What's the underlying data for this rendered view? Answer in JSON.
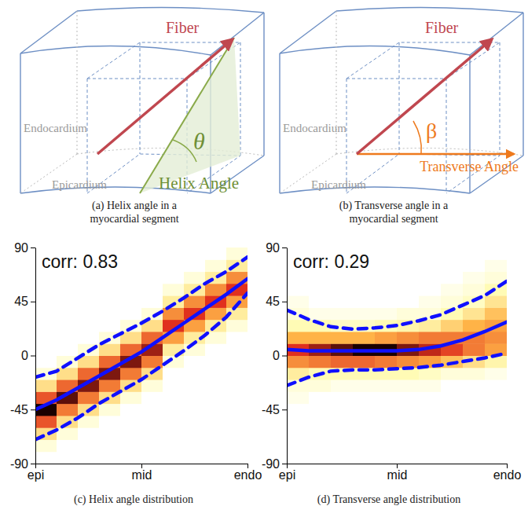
{
  "diagrams": [
    {
      "fiber": "Fiber",
      "inner_surface": "Endocardium",
      "outer_surface": "Epicardium",
      "angle_name": "Helix Angle",
      "angle_symbol": "θ",
      "kind": "helix",
      "caption": [
        "(a) Helix angle in a",
        "myocardial segment"
      ]
    },
    {
      "fiber": "Fiber",
      "inner_surface": "Endocardium",
      "outer_surface": "Epicardium",
      "angle_name": "Transverse Angle",
      "angle_symbol": "β",
      "kind": "transverse",
      "caption": [
        "(b) Transverse angle in a",
        "myocardial segment"
      ]
    }
  ],
  "chart_data": [
    {
      "type": "heatmap",
      "annotation": "corr: 0.83",
      "caption": "(c) Helix angle distribution",
      "xlim": [
        0,
        1
      ],
      "xticks": [
        {
          "value": 0,
          "label": "epi"
        },
        {
          "value": 0.5,
          "label": "mid"
        },
        {
          "value": 1,
          "label": "endo"
        }
      ],
      "ylim": [
        -90,
        90
      ],
      "yticks": [
        -90,
        -45,
        0,
        45,
        90
      ],
      "xbins": [
        0,
        0.1,
        0.2,
        0.3,
        0.4,
        0.5,
        0.6,
        0.7,
        0.8,
        0.9,
        1
      ],
      "ybins": [
        -90,
        -80,
        -70,
        -60,
        -50,
        -40,
        -30,
        -20,
        -10,
        0,
        10,
        20,
        30,
        40,
        50,
        60,
        70,
        80,
        90
      ],
      "zlim": [
        0,
        1
      ],
      "cells": [
        [
          0,
          0.05,
          0.2,
          0.6,
          1.0,
          0.6,
          0.2,
          0.05,
          0,
          0,
          0,
          0,
          0,
          0,
          0,
          0,
          0,
          0
        ],
        [
          0,
          0,
          0.05,
          0.2,
          0.5,
          0.9,
          0.55,
          0.2,
          0.05,
          0,
          0,
          0,
          0,
          0,
          0,
          0,
          0,
          0
        ],
        [
          0,
          0,
          0,
          0.05,
          0.2,
          0.5,
          0.85,
          0.55,
          0.2,
          0.05,
          0,
          0,
          0,
          0,
          0,
          0,
          0,
          0
        ],
        [
          0,
          0,
          0,
          0,
          0.05,
          0.2,
          0.5,
          0.85,
          0.55,
          0.2,
          0.05,
          0,
          0,
          0,
          0,
          0,
          0,
          0
        ],
        [
          0,
          0,
          0,
          0,
          0,
          0.05,
          0.2,
          0.5,
          0.85,
          0.55,
          0.2,
          0.05,
          0,
          0,
          0,
          0,
          0,
          0
        ],
        [
          0,
          0,
          0,
          0,
          0,
          0,
          0.05,
          0.2,
          0.5,
          0.8,
          0.55,
          0.2,
          0.05,
          0,
          0,
          0,
          0,
          0
        ],
        [
          0,
          0,
          0,
          0,
          0,
          0,
          0,
          0,
          0.05,
          0.15,
          0.4,
          0.7,
          0.45,
          0.15,
          0.05,
          0,
          0,
          0
        ],
        [
          0,
          0,
          0,
          0,
          0,
          0,
          0,
          0,
          0,
          0.05,
          0.15,
          0.4,
          0.7,
          0.45,
          0.15,
          0.05,
          0,
          0
        ],
        [
          0,
          0,
          0,
          0,
          0,
          0,
          0,
          0,
          0,
          0,
          0.05,
          0.15,
          0.4,
          0.7,
          0.45,
          0.15,
          0.05,
          0
        ],
        [
          0,
          0,
          0,
          0,
          0,
          0,
          0,
          0,
          0,
          0,
          0,
          0.05,
          0.15,
          0.4,
          0.7,
          0.45,
          0.15,
          0.05
        ]
      ],
      "x": [
        0,
        0.1,
        0.2,
        0.3,
        0.4,
        0.5,
        0.6,
        0.7,
        0.8,
        0.9,
        1
      ],
      "series": [
        {
          "values": [
            -45,
            -37,
            -27,
            -17,
            -7,
            3,
            15,
            27,
            39,
            51,
            64
          ],
          "color": "#1010ff",
          "line_style": "solid"
        },
        {
          "values": [
            -18,
            -13,
            -2,
            9,
            18,
            27,
            37,
            48,
            60,
            70,
            82
          ],
          "color": "#1010ff",
          "line_style": "dashed"
        },
        {
          "values": [
            -70,
            -62,
            -52,
            -40,
            -30,
            -20,
            -8,
            4,
            17,
            32,
            52
          ],
          "color": "#1010ff",
          "line_style": "dashed"
        }
      ]
    },
    {
      "type": "heatmap",
      "annotation": "corr: 0.29",
      "caption": "(d) Transverse angle distribution",
      "xlim": [
        0,
        1
      ],
      "xticks": [
        {
          "value": 0,
          "label": "epi"
        },
        {
          "value": 0.5,
          "label": "mid"
        },
        {
          "value": 1,
          "label": "endo"
        }
      ],
      "ylim": [
        -90,
        90
      ],
      "yticks": [
        -90,
        -45,
        0,
        45,
        90
      ],
      "xbins": [
        0,
        0.1,
        0.2,
        0.3,
        0.4,
        0.5,
        0.6,
        0.7,
        0.8,
        0.9,
        1
      ],
      "ybins": [
        -90,
        -80,
        -70,
        -60,
        -50,
        -40,
        -30,
        -20,
        -10,
        0,
        10,
        20,
        30,
        40,
        50,
        60,
        70,
        80,
        90
      ],
      "zlim": [
        0,
        1
      ],
      "cells": [
        [
          0,
          0,
          0,
          0,
          0,
          0.03,
          0.05,
          0.15,
          0.45,
          0.7,
          0.35,
          0.1,
          0.05,
          0.03,
          0,
          0,
          0,
          0
        ],
        [
          0,
          0,
          0,
          0,
          0,
          0,
          0.05,
          0.1,
          0.5,
          0.8,
          0.35,
          0.1,
          0.03,
          0,
          0,
          0,
          0,
          0
        ],
        [
          0,
          0,
          0,
          0,
          0,
          0,
          0.03,
          0.1,
          0.55,
          0.9,
          0.35,
          0.08,
          0.03,
          0,
          0,
          0,
          0,
          0
        ],
        [
          0,
          0,
          0,
          0,
          0,
          0,
          0.03,
          0.1,
          0.55,
          1.0,
          0.35,
          0.08,
          0.03,
          0,
          0,
          0,
          0,
          0
        ],
        [
          0,
          0,
          0,
          0,
          0,
          0,
          0.03,
          0.1,
          0.5,
          1.0,
          0.4,
          0.1,
          0.03,
          0,
          0,
          0,
          0,
          0
        ],
        [
          0,
          0,
          0,
          0,
          0,
          0,
          0.03,
          0.1,
          0.45,
          0.85,
          0.45,
          0.12,
          0.05,
          0,
          0,
          0,
          0,
          0
        ],
        [
          0,
          0,
          0,
          0,
          0,
          0,
          0.03,
          0.08,
          0.4,
          0.75,
          0.5,
          0.15,
          0.05,
          0.03,
          0,
          0,
          0,
          0
        ],
        [
          0,
          0,
          0,
          0,
          0,
          0,
          0,
          0.05,
          0.3,
          0.65,
          0.5,
          0.25,
          0.1,
          0.05,
          0.03,
          0,
          0,
          0
        ],
        [
          0,
          0,
          0,
          0,
          0,
          0,
          0,
          0.05,
          0.2,
          0.5,
          0.5,
          0.35,
          0.18,
          0.08,
          0.05,
          0.03,
          0,
          0
        ],
        [
          0,
          0,
          0,
          0,
          0,
          0,
          0,
          0.03,
          0.12,
          0.4,
          0.45,
          0.4,
          0.3,
          0.18,
          0.1,
          0.05,
          0.03,
          0
        ]
      ],
      "x": [
        0,
        0.1,
        0.2,
        0.3,
        0.4,
        0.5,
        0.6,
        0.7,
        0.8,
        0.9,
        1
      ],
      "series": [
        {
          "values": [
            5,
            4,
            4,
            4,
            4,
            4,
            5,
            8,
            13,
            20,
            28
          ],
          "color": "#1010ff",
          "line_style": "solid"
        },
        {
          "values": [
            38,
            30,
            24,
            22,
            23,
            25,
            29,
            34,
            42,
            50,
            62
          ],
          "color": "#1010ff",
          "line_style": "dashed"
        },
        {
          "values": [
            -25,
            -18,
            -13,
            -12,
            -12,
            -11,
            -10,
            -8,
            -5,
            -2,
            2
          ],
          "color": "#1010ff",
          "line_style": "dashed"
        }
      ]
    }
  ]
}
